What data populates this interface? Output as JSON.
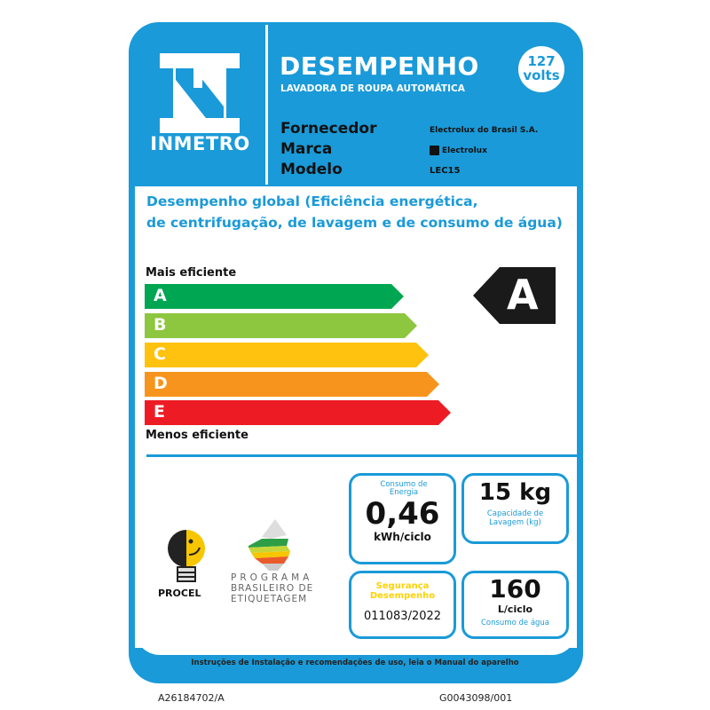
{
  "header": {
    "brand": "INMETRO",
    "title": "DESEMPENHO",
    "subtitle": "LAVADORA DE ROUPA AUTOMÁTICA",
    "voltage_value": "127",
    "voltage_unit": "volts"
  },
  "fields": [
    {
      "label": "Fornecedor",
      "value": "Electrolux do Brasil S.A."
    },
    {
      "label": "Marca",
      "value": "Electrolux"
    },
    {
      "label": "Modelo",
      "value": "LEC15"
    }
  ],
  "performance": {
    "heading": "Desempenho global",
    "heading_detail": "(Eficiência energética,",
    "line2": "de centrifugação, de lavagem e de consumo de água)",
    "most": "Mais eficiente",
    "least": "Menos eficiente",
    "classes": [
      {
        "letter": "A",
        "color": "#00a651"
      },
      {
        "letter": "B",
        "color": "#8dc63f"
      },
      {
        "letter": "C",
        "color": "#ffc20e"
      },
      {
        "letter": "D",
        "color": "#f7941d"
      },
      {
        "letter": "E",
        "color": "#ed1c24"
      }
    ],
    "rating": "A"
  },
  "energy": {
    "label": "Consumo de Energia",
    "value": "0,46",
    "unit": "kWh/ciclo"
  },
  "capacity": {
    "value": "15 kg",
    "label": "Capacidade de Lavagem (kg)"
  },
  "safety": {
    "line1": "Segurança",
    "line2": "Desempenho",
    "code": "011083/2022"
  },
  "water": {
    "value": "160",
    "unit": "L/ciclo",
    "label": "Consumo de água"
  },
  "logos": {
    "procel": "PROCEL",
    "pbe": [
      "PROGRAMA",
      "BRASILEIRO DE",
      "ETIQUETAGEM"
    ]
  },
  "footer": {
    "instructions": "Instruções de Instalação e recomendações de uso, leia o Manual do aparelho",
    "code_left": "A26184702/A",
    "code_right": "G0043098/001"
  },
  "colors": {
    "primary": "#1a9ad8",
    "indicator": "#1a1a1a"
  }
}
